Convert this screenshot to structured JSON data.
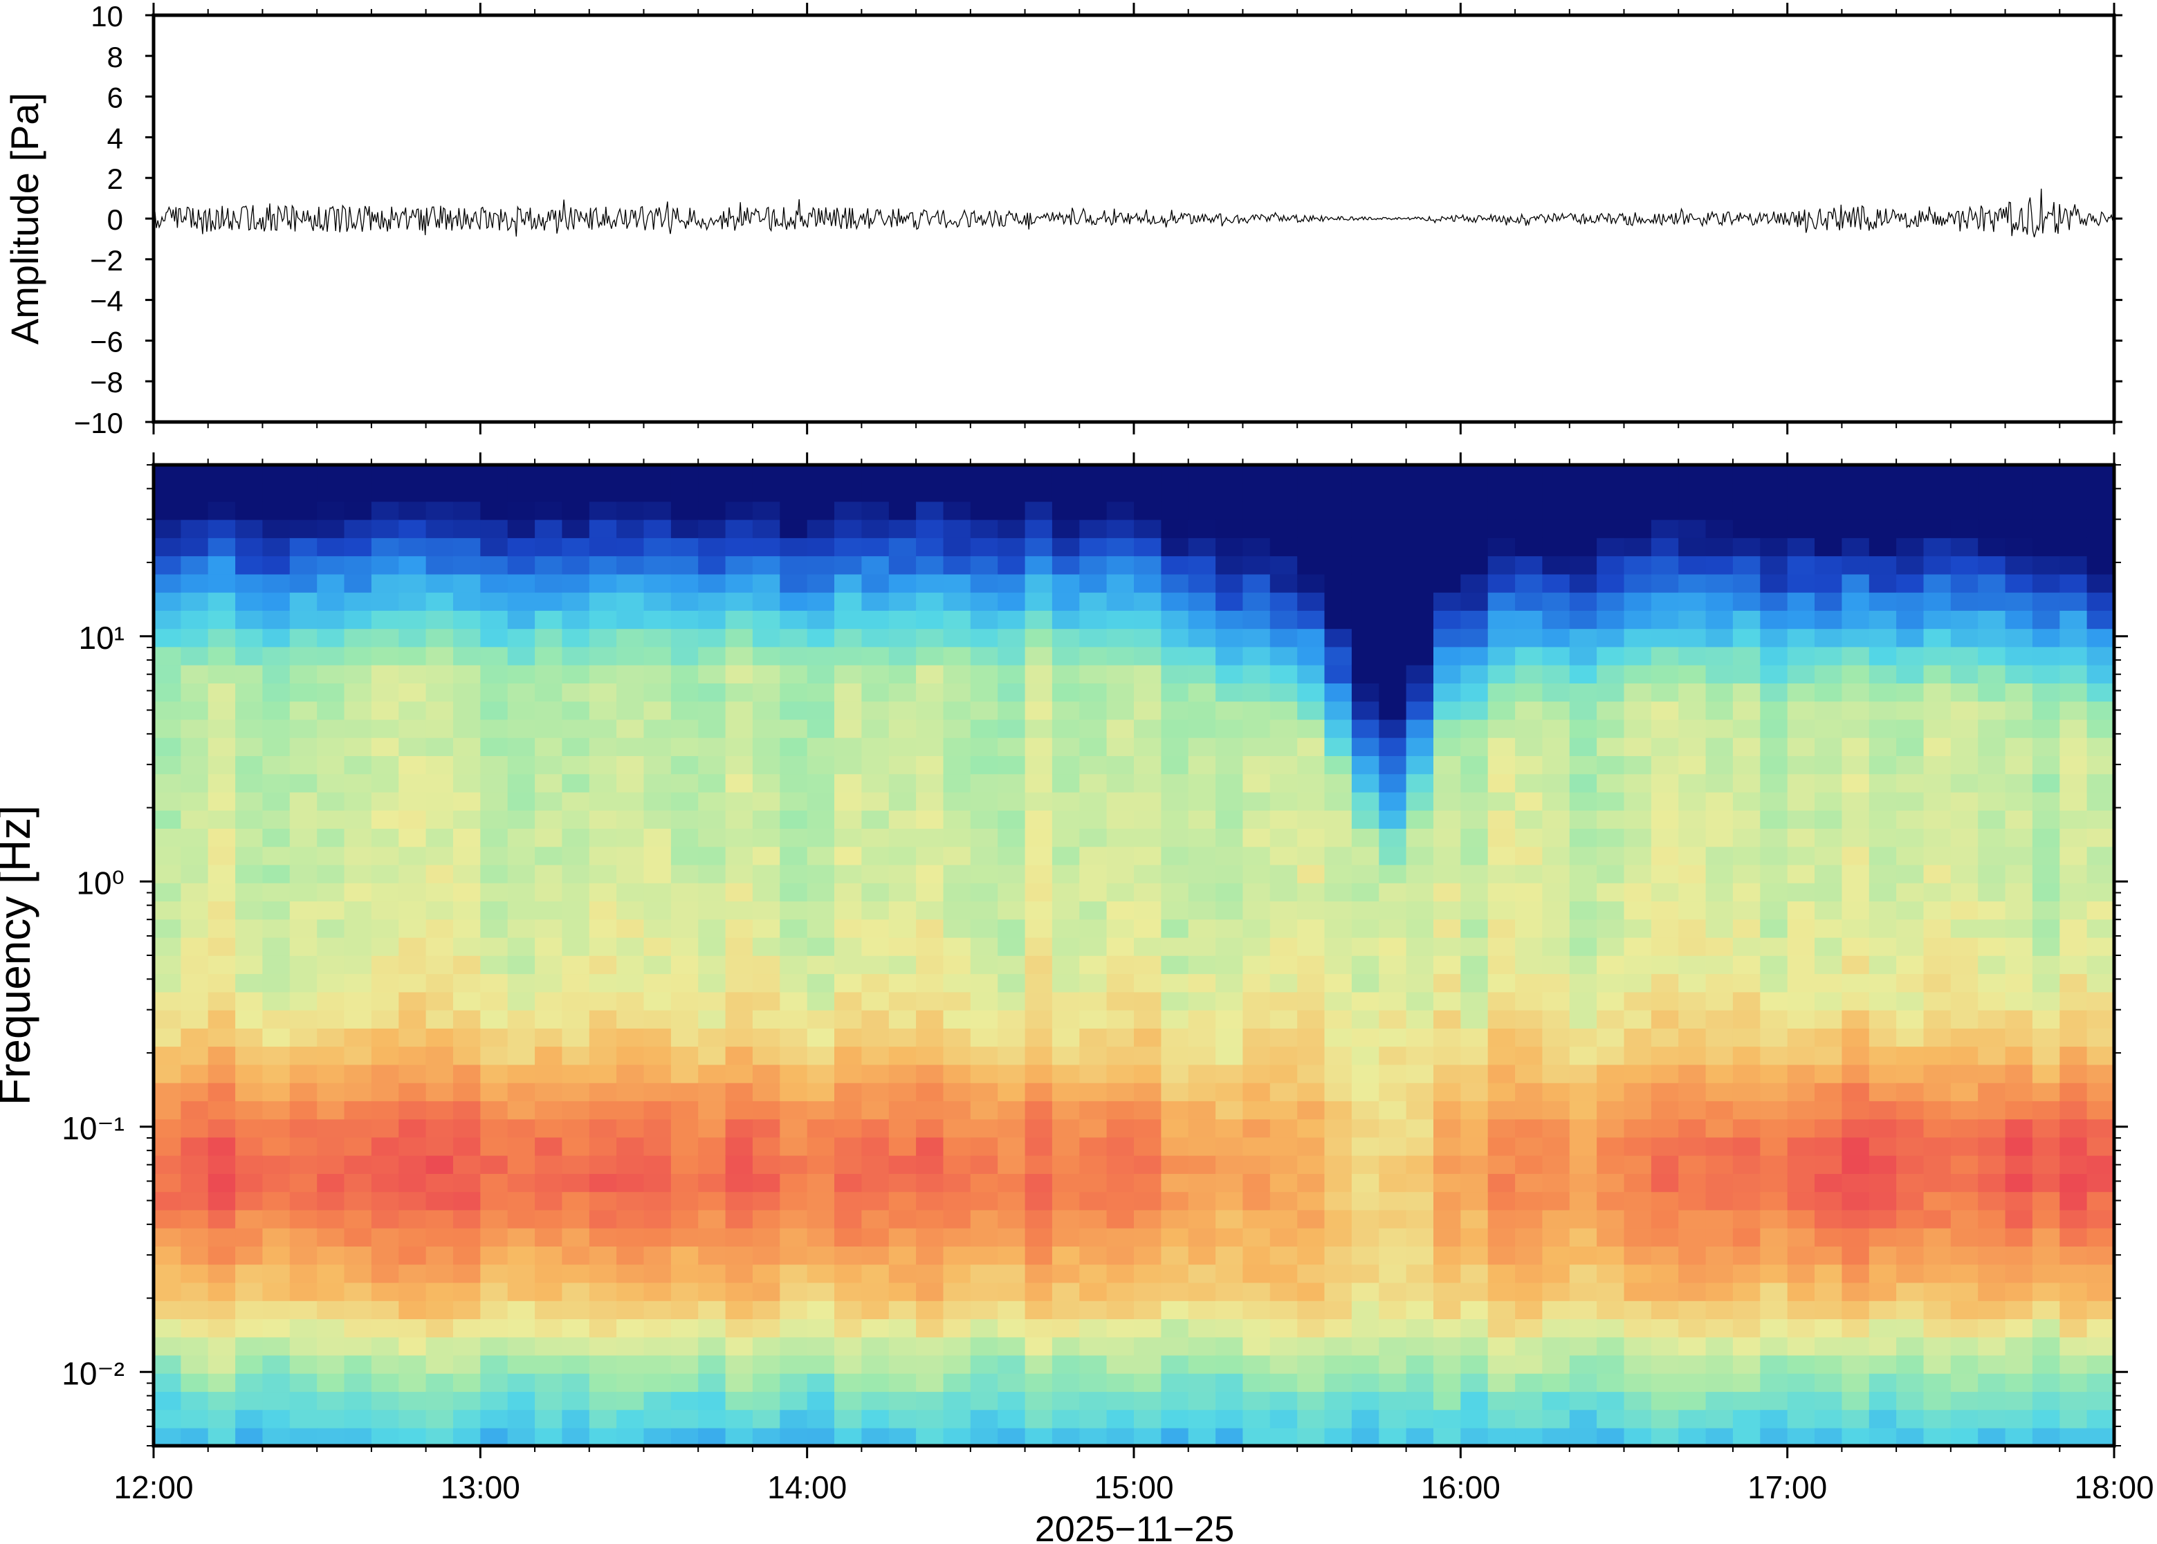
{
  "chart_data": [
    {
      "type": "line",
      "panel": "waveform",
      "ylabel": "Amplitude [Pa]",
      "ylim": [
        -10,
        10
      ],
      "yticks": [
        "10",
        "8",
        "6",
        "4",
        "2",
        "0",
        "−2",
        "−4",
        "−6",
        "−8",
        "−10"
      ],
      "ytick_values": [
        10,
        8,
        6,
        4,
        2,
        0,
        -2,
        -4,
        -6,
        -8,
        -10
      ],
      "xlim": [
        "12:00",
        "18:00"
      ],
      "grid": false,
      "series": [
        {
          "envelope_time": [
            "12:00",
            "12:30",
            "13:00",
            "13:30",
            "14:00",
            "14:30",
            "15:00",
            "15:30",
            "15:45",
            "15:50",
            "16:00",
            "16:30",
            "17:00",
            "17:10",
            "17:20",
            "17:30",
            "17:40",
            "17:45",
            "17:50",
            "18:00"
          ],
          "envelope_amplitude": [
            1.1,
            1.1,
            1.0,
            1.0,
            1.0,
            0.7,
            0.5,
            0.3,
            0.1,
            0.1,
            0.3,
            0.5,
            0.6,
            1.2,
            0.8,
            0.6,
            1.5,
            2.0,
            1.2,
            0.4
          ],
          "color": "#000000"
        }
      ]
    },
    {
      "type": "heatmap",
      "panel": "spectrogram",
      "ylabel": "Frequency [Hz]",
      "xlabel": "2025−11−25",
      "yscale": "log",
      "ylim": [
        0.005,
        50
      ],
      "yticks": [
        "10¹",
        "10⁰",
        "10⁻¹",
        "10⁻²"
      ],
      "ytick_values": [
        10,
        1,
        0.1,
        0.01
      ],
      "xticks": [
        "12:00",
        "13:00",
        "14:00",
        "15:00",
        "16:00",
        "17:00",
        "18:00"
      ],
      "colormap": [
        "#0a1275",
        "#1a47c8",
        "#2f9bef",
        "#54d7e6",
        "#9ee9ad",
        "#ecec9a",
        "#f7b962",
        "#f58650",
        "#ec4a52"
      ],
      "time": [
        "12:00",
        "12:30",
        "13:00",
        "13:30",
        "14:00",
        "14:30",
        "15:00",
        "15:15",
        "15:30",
        "15:40",
        "15:45",
        "15:50",
        "15:55",
        "16:00",
        "16:30",
        "17:00",
        "17:10",
        "17:20",
        "17:30",
        "17:40",
        "17:50",
        "18:00"
      ],
      "cutoff_hz": [
        40,
        40,
        40,
        40,
        40,
        40,
        40,
        30,
        22,
        10,
        5,
        5,
        12,
        22,
        30,
        30,
        30,
        30,
        30,
        30,
        28,
        20
      ],
      "peak_band_hz": [
        0.05,
        0.1
      ],
      "peak_strength": [
        0.9,
        0.85,
        0.85,
        0.8,
        0.8,
        0.75,
        0.7,
        0.5,
        0.4,
        0.2,
        0.1,
        0.1,
        0.3,
        0.5,
        0.65,
        0.75,
        0.95,
        0.95,
        0.6,
        0.95,
        1.0,
        0.85
      ],
      "grid": false
    }
  ]
}
